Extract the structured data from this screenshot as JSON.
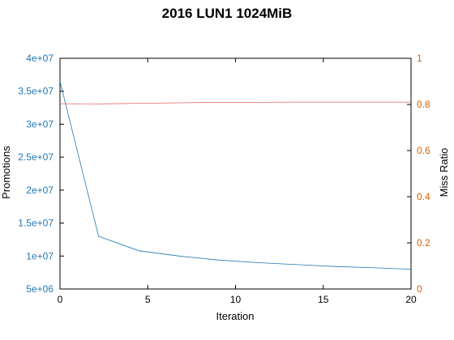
{
  "chart_data": {
    "type": "line",
    "title": "2016 LUN1 1024MiB",
    "xlabel": "Iteration",
    "ylabel_left": "Promotions",
    "ylabel_right": "Miss Ratio",
    "xlim": [
      0,
      20
    ],
    "ylim_left": [
      5000000,
      40000000
    ],
    "ylim_right": [
      0,
      1
    ],
    "x_ticks": [
      0,
      5,
      10,
      15,
      20
    ],
    "y_left_ticks": [
      {
        "value": 5000000,
        "label": "5e+06"
      },
      {
        "value": 10000000,
        "label": "1e+07"
      },
      {
        "value": 15000000,
        "label": "1.5e+07"
      },
      {
        "value": 20000000,
        "label": "2e+07"
      },
      {
        "value": 25000000,
        "label": "2.5e+07"
      },
      {
        "value": 30000000,
        "label": "3e+07"
      },
      {
        "value": 35000000,
        "label": "3.5e+07"
      },
      {
        "value": 40000000,
        "label": "4e+07"
      }
    ],
    "y_right_ticks": [
      {
        "value": 0,
        "label": "0"
      },
      {
        "value": 0.2,
        "label": "0.2"
      },
      {
        "value": 0.4,
        "label": "0.4"
      },
      {
        "value": 0.6,
        "label": "0.6"
      },
      {
        "value": 0.8,
        "label": "0.8"
      },
      {
        "value": 1,
        "label": "1"
      }
    ],
    "grid": false,
    "series": [
      {
        "axis": "left",
        "color": "#1f77b4",
        "x": [
          0,
          2.2,
          4.5,
          6.8,
          9.0,
          11.2,
          13.5,
          15.8,
          18.0,
          20
        ],
        "values": [
          36500000,
          13000000,
          10800000,
          10000000,
          9400000,
          9000000,
          8700000,
          8400000,
          8200000,
          8000000
        ]
      },
      {
        "axis": "right",
        "color": "#d62728",
        "x": [
          0,
          2.2,
          4.5,
          6.8,
          9.0,
          11.2,
          13.5,
          15.8,
          18.0,
          20
        ],
        "values": [
          0.803,
          0.802,
          0.805,
          0.807,
          0.809,
          0.809,
          0.81,
          0.81,
          0.81,
          0.81
        ]
      }
    ]
  },
  "colors": {
    "left_axis_ticks": "#1f77b4",
    "right_axis_ticks": "#d95f02",
    "frame": "#000000"
  }
}
